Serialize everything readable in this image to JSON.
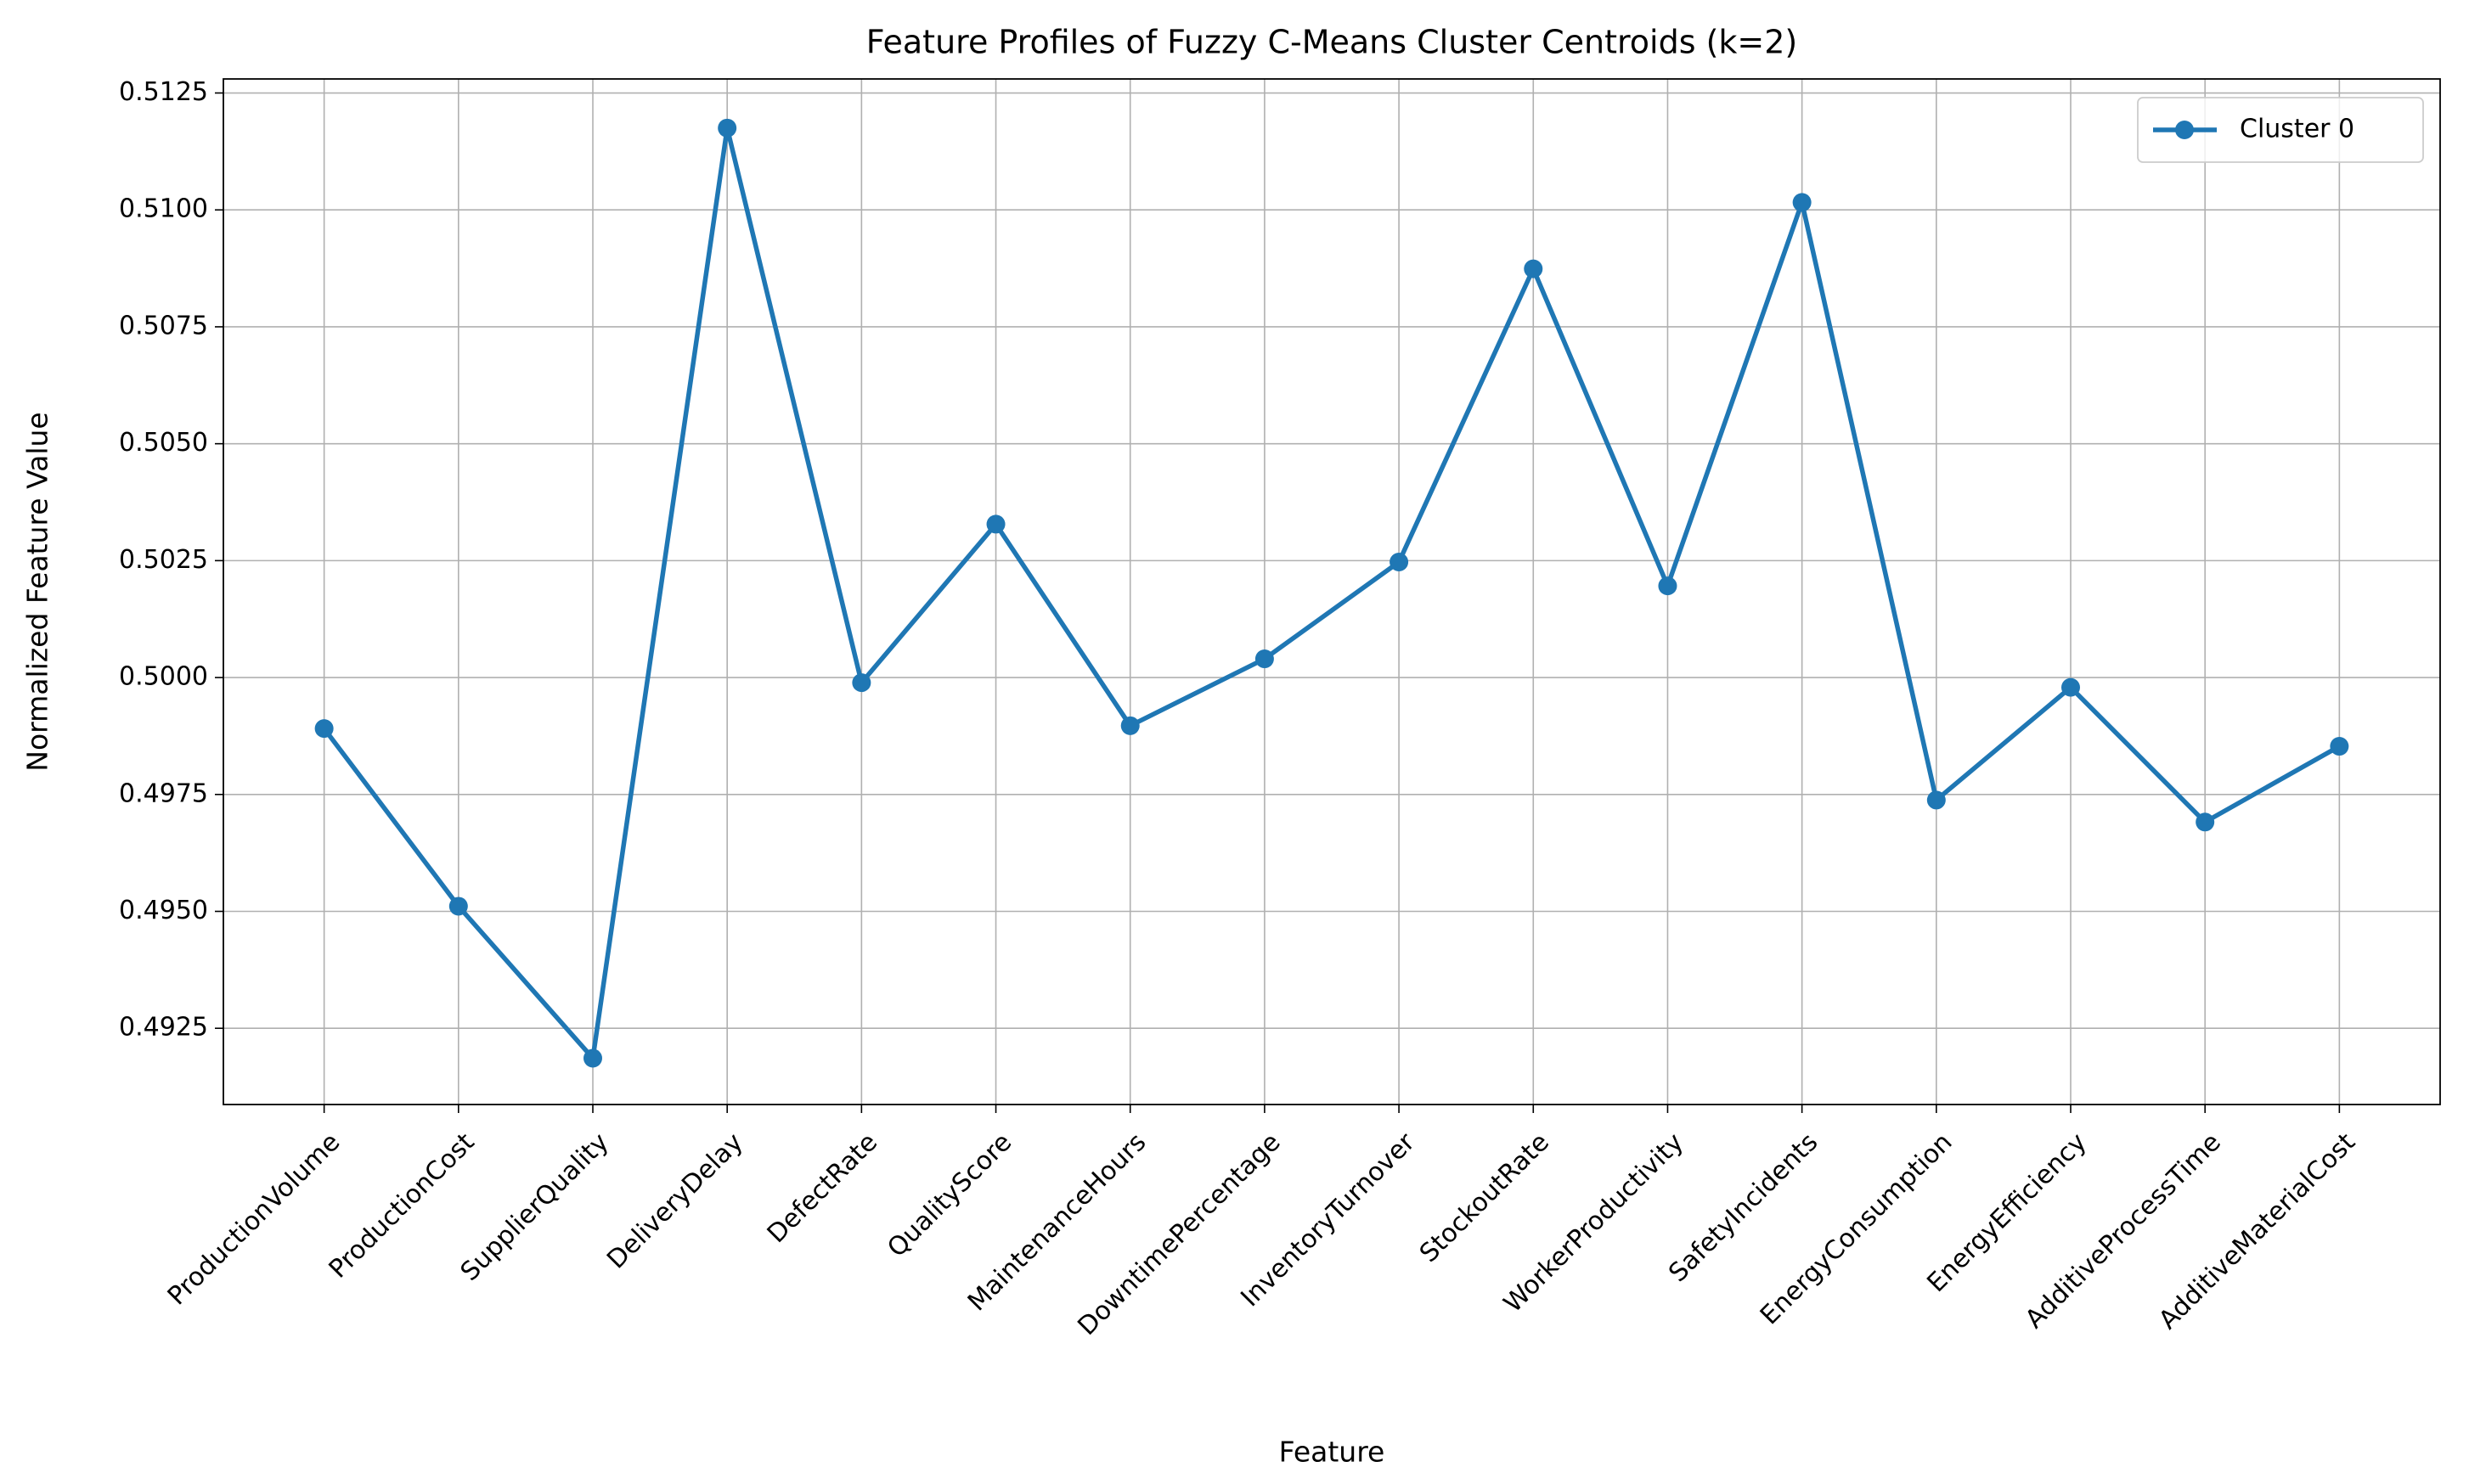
{
  "chart_data": {
    "type": "line",
    "title": "Feature Profiles of Fuzzy C-Means Cluster Centroids (k=2)",
    "x_label": "Feature",
    "y_label": "Normalized Feature Value",
    "categories": [
      "ProductionVolume",
      "ProductionCost",
      "SupplierQuality",
      "DeliveryDelay",
      "DefectRate",
      "QualityScore",
      "MaintenanceHours",
      "DowntimePercentage",
      "InventoryTurnover",
      "StockoutRate",
      "WorkerProductivity",
      "SafetyIncidents",
      "EnergyConsumption",
      "EnergyEfficiency",
      "AdditiveProcessTime",
      "AdditiveMaterialCost"
    ],
    "series": [
      {
        "name": "Cluster 0",
        "color": "#1f77b4",
        "values": [
          0.49891,
          0.49511,
          0.49186,
          0.51175,
          0.49989,
          0.50328,
          0.49897,
          0.5004,
          0.50247,
          0.50874,
          0.50196,
          0.51016,
          0.49738,
          0.49979,
          0.49691,
          0.49853
        ]
      }
    ],
    "ylim": [
      0.49087,
      0.5128
    ],
    "yticks": [
      0.4925,
      {
        "value": 0.495,
        "label": "0.4950"
      },
      0.4975,
      {
        "value": 0.5,
        "label": "0.5000"
      },
      0.5025,
      {
        "value": 0.505,
        "label": "0.5050"
      },
      0.5075,
      {
        "value": 0.51,
        "label": "0.5100"
      },
      0.5125
    ],
    "grid": true,
    "legend": "upper right"
  }
}
